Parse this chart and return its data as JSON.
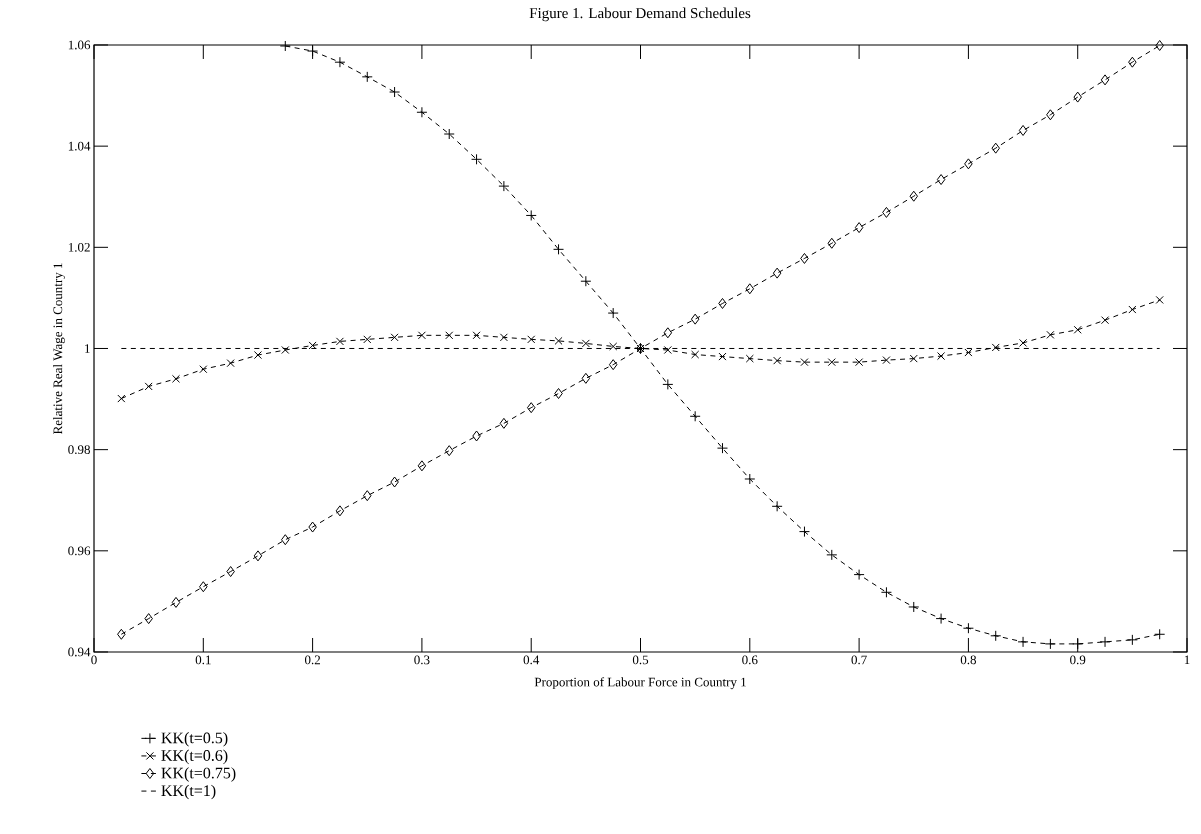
{
  "chart_data": {
    "type": "line",
    "title": "Figure 1.  Labour Demand Schedules",
    "xlabel": "Proportion of Labour Force in Country 1",
    "ylabel": "Relative Real Wage in Country 1",
    "x": [
      0.025,
      0.05,
      0.075,
      0.1,
      0.125,
      0.15,
      0.175,
      0.2,
      0.225,
      0.25,
      0.275,
      0.3,
      0.325,
      0.35,
      0.375,
      0.4,
      0.425,
      0.45,
      0.475,
      0.5,
      0.525,
      0.55,
      0.575,
      0.6,
      0.625,
      0.65,
      0.675,
      0.7,
      0.725,
      0.75,
      0.775,
      0.8,
      0.825,
      0.85,
      0.875,
      0.9,
      0.925,
      0.95,
      0.975
    ],
    "series": [
      {
        "name": "KK(t=0.5)",
        "color": "#000000",
        "marker": "plus",
        "line_style": "dashed",
        "values": [
          null,
          null,
          null,
          null,
          null,
          null,
          1.0598,
          1.0588,
          1.0566,
          1.0537,
          1.0507,
          1.0467,
          1.0424,
          1.0374,
          1.0321,
          1.0263,
          1.0196,
          1.0133,
          1.007,
          1.0,
          0.9929,
          0.9866,
          0.9803,
          0.9742,
          0.9688,
          0.9638,
          0.9592,
          0.9553,
          0.9518,
          0.9489,
          0.9466,
          0.9447,
          0.9432,
          0.942,
          0.9416,
          0.9416,
          0.942,
          0.9424,
          0.9435
        ]
      },
      {
        "name": "KK(t=0.6)",
        "color": "#000000",
        "marker": "cross",
        "line_style": "dashed",
        "values": [
          0.9901,
          0.9925,
          0.994,
          0.9959,
          0.9971,
          0.9987,
          0.9997,
          1.0006,
          1.0014,
          1.0018,
          1.0022,
          1.0026,
          1.0026,
          1.0026,
          1.0022,
          1.0018,
          1.0015,
          1.001,
          1.0004,
          1.0,
          0.9997,
          0.9988,
          0.9984,
          0.998,
          0.9976,
          0.9973,
          0.9973,
          0.9973,
          0.9977,
          0.998,
          0.9985,
          0.9992,
          1.0002,
          1.0011,
          1.0027,
          1.0037,
          1.0056,
          1.0077,
          1.0096
        ]
      },
      {
        "name": "KK(t=0.75)",
        "color": "#000000",
        "marker": "diamond",
        "line_style": "dashed",
        "values": [
          0.9435,
          0.9466,
          0.9498,
          0.9529,
          0.9559,
          0.959,
          0.9622,
          0.9647,
          0.9679,
          0.9709,
          0.9736,
          0.9768,
          0.9798,
          0.9827,
          0.9852,
          0.9883,
          0.9911,
          0.9941,
          0.9968,
          1.0,
          1.0031,
          1.0058,
          1.0089,
          1.0118,
          1.0149,
          1.0178,
          1.0208,
          1.0239,
          1.0269,
          1.0301,
          1.0334,
          1.0365,
          1.0396,
          1.0431,
          1.0462,
          1.0497,
          1.0531,
          1.0566,
          1.0599
        ]
      },
      {
        "name": "KK(t=1)",
        "color": "#000000",
        "marker": "none",
        "line_style": "dashed",
        "values": [
          1.0,
          1.0,
          1.0,
          1.0,
          1.0,
          1.0,
          1.0,
          1.0,
          1.0,
          1.0,
          1.0,
          1.0,
          1.0,
          1.0,
          1.0,
          1.0,
          1.0,
          1.0,
          1.0,
          1.0,
          1.0,
          1.0,
          1.0,
          1.0,
          1.0,
          1.0,
          1.0,
          1.0,
          1.0,
          1.0,
          1.0,
          1.0,
          1.0,
          1.0,
          1.0,
          1.0,
          1.0,
          1.0,
          1.0
        ]
      }
    ],
    "xlim": [
      0,
      1
    ],
    "ylim": [
      0.94,
      1.06
    ],
    "xticks": [
      0,
      0.1,
      0.2,
      0.3,
      0.4,
      0.5,
      0.6,
      0.7,
      0.8,
      0.9,
      1
    ],
    "yticks": [
      0.94,
      0.96,
      0.98,
      1,
      1.02,
      1.04,
      1.06
    ],
    "grid": false,
    "legend": "bottom left"
  }
}
